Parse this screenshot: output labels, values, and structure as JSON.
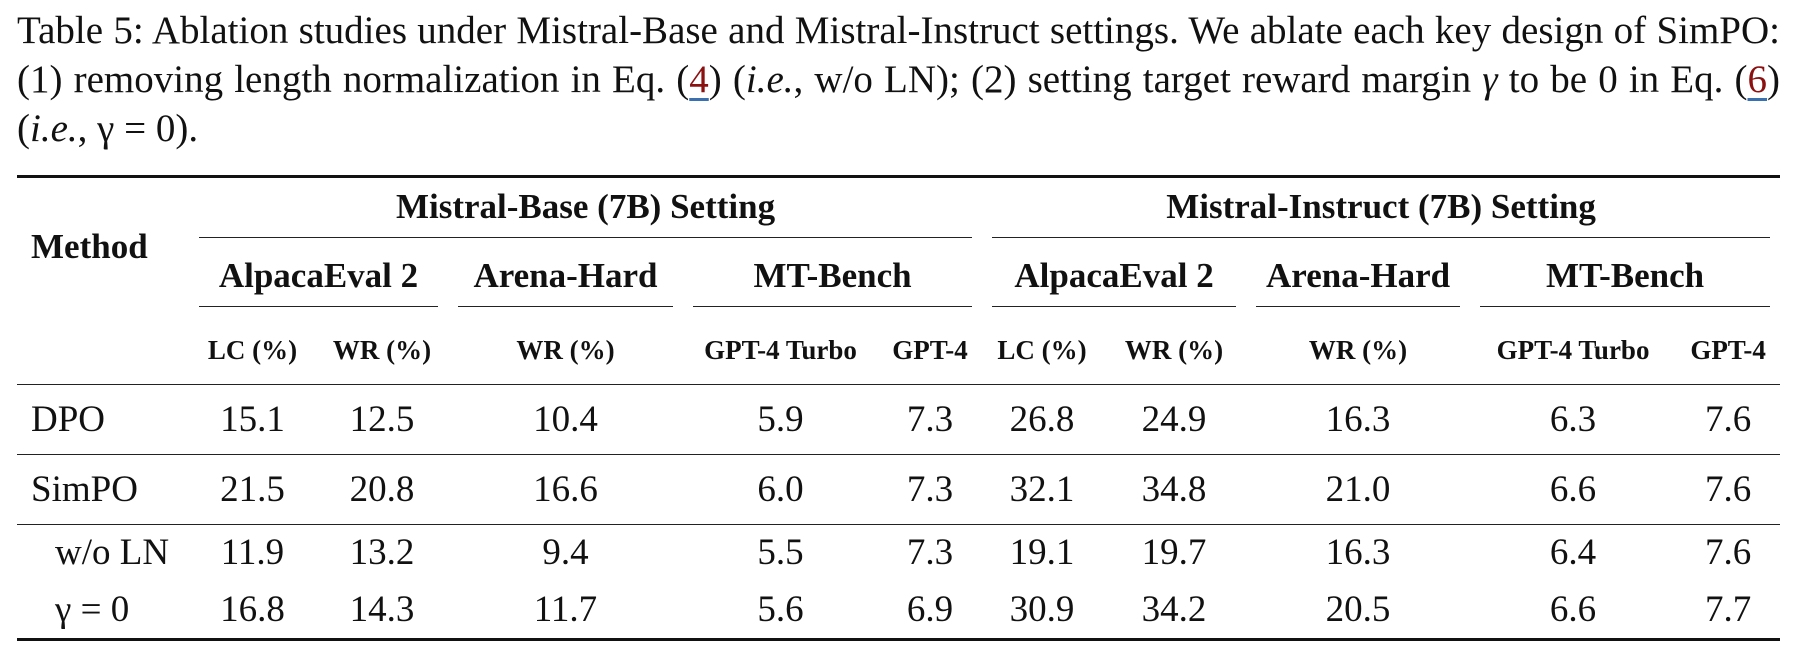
{
  "caption": {
    "parts": [
      "Table 5: Ablation studies under Mistral-Base and Mistral-Instruct settings. We ablate each key design of SimPO: (1) removing length normalization in Eq. (",
      "4",
      ") (",
      "i.e.",
      ", w/o LN); (2) setting target reward margin ",
      "γ",
      " to be 0 in Eq. (",
      "6",
      ") (",
      "i.e.",
      ", ",
      "γ = 0",
      ")."
    ]
  },
  "table": {
    "method_header": "Method",
    "groups": [
      {
        "title": "Mistral-Base (7B) Setting",
        "benchmarks": [
          "AlpacaEval 2",
          "Arena-Hard",
          "MT-Bench"
        ],
        "metrics": [
          "LC (%)",
          "WR (%)",
          "WR (%)",
          "GPT-4 Turbo",
          "GPT-4"
        ]
      },
      {
        "title": "Mistral-Instruct (7B) Setting",
        "benchmarks": [
          "AlpacaEval 2",
          "Arena-Hard",
          "MT-Bench"
        ],
        "metrics": [
          "LC (%)",
          "WR (%)",
          "WR (%)",
          "GPT-4 Turbo",
          "GPT-4"
        ]
      }
    ],
    "rows": [
      {
        "method": "DPO",
        "values": [
          "15.1",
          "12.5",
          "10.4",
          "5.9",
          "7.3",
          "26.8",
          "24.9",
          "16.3",
          "6.3",
          "7.6"
        ]
      },
      {
        "method": "SimPO",
        "values": [
          "21.5",
          "20.8",
          "16.6",
          "6.0",
          "7.3",
          "32.1",
          "34.8",
          "21.0",
          "6.6",
          "7.6"
        ]
      },
      {
        "method": "w/o LN",
        "values": [
          "11.9",
          "13.2",
          "9.4",
          "5.5",
          "7.3",
          "19.1",
          "19.7",
          "16.3",
          "6.4",
          "7.6"
        ]
      },
      {
        "method": "γ = 0",
        "values": [
          "16.8",
          "14.3",
          "11.7",
          "5.6",
          "6.9",
          "30.9",
          "34.2",
          "20.5",
          "6.6",
          "7.7"
        ]
      }
    ]
  }
}
